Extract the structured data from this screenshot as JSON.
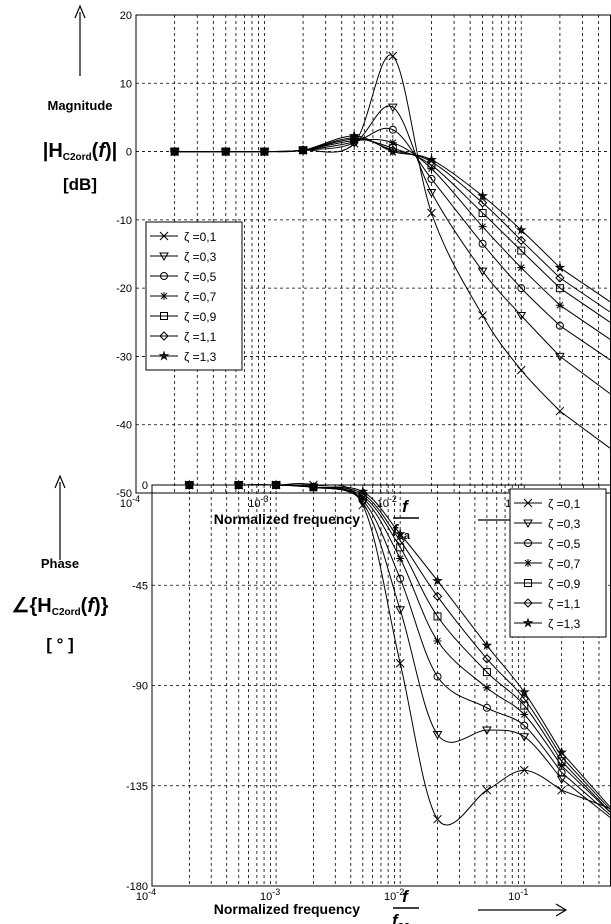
{
  "chart_data": [
    {
      "type": "line",
      "xscale": "log",
      "xlim": [
        0.0001,
        0.5
      ],
      "ylim": [
        -50,
        20
      ],
      "yticks": [
        20,
        10,
        0,
        -10,
        -20,
        -30,
        -40,
        -50
      ],
      "xtick_labels": [
        {
          "base": "10",
          "exp": "-4"
        },
        {
          "base": "10",
          "exp": "-3"
        },
        {
          "base": "10",
          "exp": "-2"
        },
        {
          "base": "10",
          "exp": "-1"
        }
      ],
      "ylabel": {
        "line1": "Magnitude",
        "func": "H",
        "sub": "C2ord",
        "arg": "f",
        "unit": "[dB]"
      },
      "xlabel": "Normalized frequency",
      "xlabel_frac": {
        "num": "f",
        "den": "f",
        "den_sub": "sa"
      },
      "legend_position": "bottom-left",
      "grid": "dashed",
      "series": [
        {
          "name": "ζ =0,1",
          "marker": "x",
          "x": [
            0.0002,
            0.0005,
            0.001,
            0.002,
            0.005,
            0.01,
            0.02,
            0.05,
            0.1,
            0.2
          ],
          "values": [
            0,
            0,
            0,
            0.2,
            1.2,
            14,
            -9,
            -24,
            -32,
            -38
          ]
        },
        {
          "name": "ζ =0,3",
          "marker": "triangle",
          "x": [
            0.0002,
            0.0005,
            0.001,
            0.002,
            0.005,
            0.01,
            0.02,
            0.05,
            0.1,
            0.2
          ],
          "values": [
            0,
            0,
            0,
            0.2,
            1.3,
            6.5,
            -6,
            -17.5,
            -24,
            -30
          ]
        },
        {
          "name": "ζ =0,5",
          "marker": "circle",
          "x": [
            0.0002,
            0.0005,
            0.001,
            0.002,
            0.005,
            0.01,
            0.02,
            0.05,
            0.1,
            0.2
          ],
          "values": [
            0,
            0,
            0,
            0.2,
            1.4,
            3.2,
            -4,
            -13.5,
            -20,
            -25.5
          ]
        },
        {
          "name": "ζ =0,7",
          "marker": "star",
          "x": [
            0.0002,
            0.0005,
            0.001,
            0.002,
            0.005,
            0.01,
            0.02,
            0.05,
            0.1,
            0.2
          ],
          "values": [
            0,
            0,
            0,
            0.2,
            1.6,
            1.3,
            -2.5,
            -11,
            -17,
            -22.5
          ]
        },
        {
          "name": "ζ =0,9",
          "marker": "square",
          "x": [
            0.0002,
            0.0005,
            0.001,
            0.002,
            0.005,
            0.01,
            0.02,
            0.05,
            0.1,
            0.2
          ],
          "values": [
            0,
            0,
            0,
            0.2,
            1.8,
            0.5,
            -2,
            -9,
            -14.5,
            -20
          ]
        },
        {
          "name": "ζ =1,1",
          "marker": "diamond",
          "x": [
            0.0002,
            0.0005,
            0.001,
            0.002,
            0.005,
            0.01,
            0.02,
            0.05,
            0.1,
            0.2
          ],
          "values": [
            0,
            0,
            0,
            0.2,
            2,
            0.2,
            -1.5,
            -7.5,
            -13,
            -18.5
          ]
        },
        {
          "name": "ζ =1,3",
          "marker": "pentagram",
          "x": [
            0.0002,
            0.0005,
            0.001,
            0.002,
            0.005,
            0.01,
            0.02,
            0.05,
            0.1,
            0.2
          ],
          "values": [
            0,
            0,
            0,
            0.2,
            2.3,
            0,
            -1.2,
            -6.5,
            -11.5,
            -17
          ]
        }
      ]
    },
    {
      "type": "line",
      "xscale": "log",
      "xlim": [
        0.0001,
        0.5
      ],
      "ylim": [
        -180,
        0
      ],
      "yticks": [
        0,
        -45,
        -90,
        -135,
        -180
      ],
      "xtick_labels": [
        {
          "base": "10",
          "exp": "-4"
        },
        {
          "base": "10",
          "exp": "-3"
        },
        {
          "base": "10",
          "exp": "-2"
        },
        {
          "base": "10",
          "exp": "-1"
        }
      ],
      "ylabel": {
        "line1": "Phase",
        "func": "H",
        "sub": "C2ord",
        "arg": "f",
        "unit": "[ ° ]"
      },
      "xlabel": "Normalized frequency",
      "xlabel_frac": {
        "num": "f",
        "den": "f",
        "den_sub": "sa"
      },
      "legend_position": "top-right",
      "grid": "dashed",
      "series": [
        {
          "name": "ζ =0,1",
          "marker": "x",
          "x": [
            0.0002,
            0.0005,
            0.001,
            0.002,
            0.005,
            0.01,
            0.02,
            0.05,
            0.1,
            0.2
          ],
          "values": [
            0,
            0,
            0,
            0,
            -9,
            -80,
            -150,
            -137,
            -128,
            -137
          ]
        },
        {
          "name": "ζ =0,3",
          "marker": "triangle",
          "x": [
            0.0002,
            0.0005,
            0.001,
            0.002,
            0.005,
            0.01,
            0.02,
            0.05,
            0.1,
            0.2
          ],
          "values": [
            0,
            0,
            0,
            -1,
            -8,
            -56,
            -112,
            -110,
            -113,
            -132
          ]
        },
        {
          "name": "ζ =0,5",
          "marker": "circle",
          "x": [
            0.0002,
            0.0005,
            0.001,
            0.002,
            0.005,
            0.01,
            0.02,
            0.05,
            0.1,
            0.2
          ],
          "values": [
            0,
            0,
            0,
            -1,
            -7,
            -42,
            -86,
            -100,
            -108,
            -129
          ]
        },
        {
          "name": "ζ =0,7",
          "marker": "star",
          "x": [
            0.0002,
            0.0005,
            0.001,
            0.002,
            0.005,
            0.01,
            0.02,
            0.05,
            0.1,
            0.2
          ],
          "values": [
            0,
            0,
            0,
            -1,
            -6,
            -33,
            -70,
            -91,
            -103,
            -126
          ]
        },
        {
          "name": "ζ =0,9",
          "marker": "square",
          "x": [
            0.0002,
            0.0005,
            0.001,
            0.002,
            0.005,
            0.01,
            0.02,
            0.05,
            0.1,
            0.2
          ],
          "values": [
            0,
            0,
            0,
            -1,
            -5,
            -28,
            -59,
            -84,
            -99,
            -124
          ]
        },
        {
          "name": "ζ =1,1",
          "marker": "diamond",
          "x": [
            0.0002,
            0.0005,
            0.001,
            0.002,
            0.005,
            0.01,
            0.02,
            0.05,
            0.1,
            0.2
          ],
          "values": [
            0,
            0,
            0,
            -1,
            -4,
            -25,
            -50,
            -78,
            -96,
            -122
          ]
        },
        {
          "name": "ζ =1,3",
          "marker": "pentagram",
          "x": [
            0.0002,
            0.0005,
            0.001,
            0.002,
            0.005,
            0.01,
            0.02,
            0.05,
            0.1,
            0.2
          ],
          "values": [
            0,
            0,
            0,
            -1,
            -3,
            -22,
            -43,
            -72,
            -93,
            -120
          ]
        }
      ]
    }
  ]
}
